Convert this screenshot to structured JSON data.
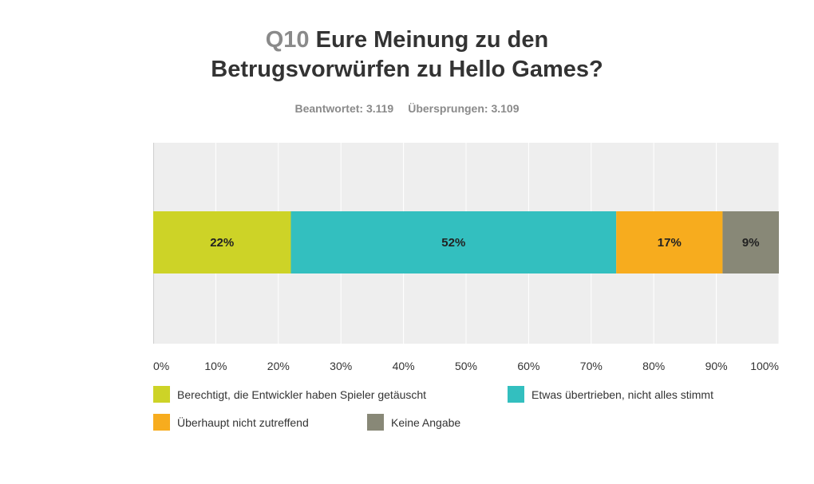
{
  "header": {
    "qnum": "Q10",
    "title_line1": "Eure Meinung zu den",
    "title_line2": "Betrugsvorwürfen zu Hello Games?",
    "answered": "Beantwortet: 3.119",
    "skipped": "Übersprungen: 3.109"
  },
  "chart_data": {
    "type": "bar",
    "orientation": "horizontal",
    "stacked": true,
    "categories": [
      ""
    ],
    "xlim": [
      0,
      100
    ],
    "x_ticks": [
      "0%",
      "10%",
      "20%",
      "30%",
      "40%",
      "50%",
      "60%",
      "70%",
      "80%",
      "90%",
      "100%"
    ],
    "grid": true,
    "legend_position": "bottom",
    "series": [
      {
        "name": "Berechtigt, die Entwickler haben Spieler getäuscht",
        "values": [
          22
        ],
        "label": "22%",
        "color": "#cdd327"
      },
      {
        "name": "Etwas übertrieben, nicht alles stimmt",
        "values": [
          52
        ],
        "label": "52%",
        "color": "#33bfbf"
      },
      {
        "name": "Überhaupt nicht zutreffend",
        "values": [
          17
        ],
        "label": "17%",
        "color": "#f7ac1e"
      },
      {
        "name": "Keine Angabe",
        "values": [
          9
        ],
        "label": "9%",
        "color": "#888877"
      }
    ]
  }
}
